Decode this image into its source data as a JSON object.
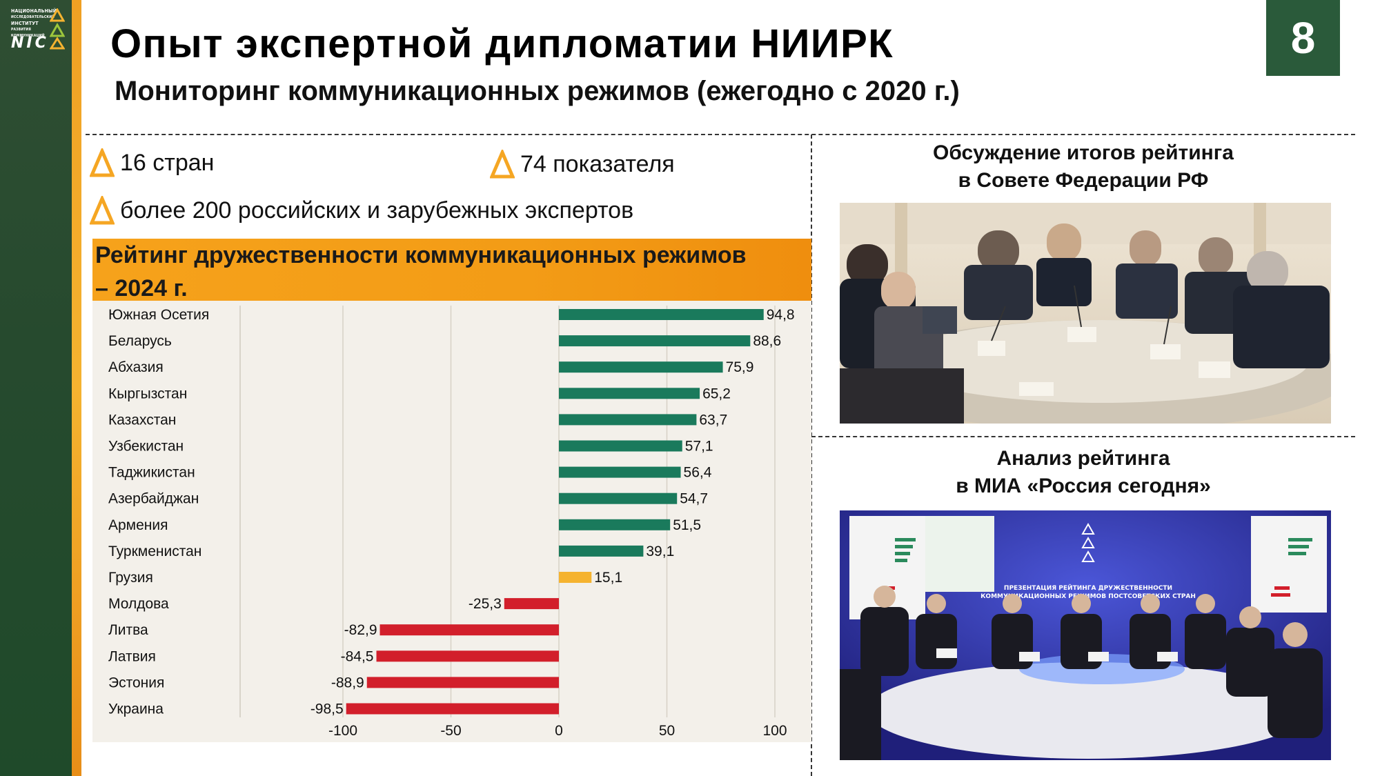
{
  "header": {
    "title": "Опыт экспертной дипломатии НИИРК",
    "subtitle": "Мониторинг коммуникационных режимов (ежегодно с 2020 г.)",
    "page_number": "8"
  },
  "logo": {
    "lines": [
      "НАЦИОНАЛЬНЫЙ",
      "ИССЛЕДОВАТЕЛЬСКИЙ",
      "ИНСТИТУТ",
      "РАЗВИТИЯ",
      "КОММУНИКАЦИЙ"
    ],
    "mark": "NIC"
  },
  "stats": {
    "countries": "16 стран",
    "indicators": "74 показателя",
    "experts": "более 200 российских и зарубежных экспертов"
  },
  "chart_banner": {
    "line1": "Рейтинг дружественности коммуникационных режимов",
    "line2": "– 2024 г."
  },
  "chart_data": {
    "type": "bar",
    "orientation": "horizontal",
    "categories": [
      "Южная Осетия",
      "Беларусь",
      "Абхазия",
      "Кыргызстан",
      "Казахстан",
      "Узбекистан",
      "Таджикистан",
      "Азербайджан",
      "Армения",
      "Туркменистан",
      "Грузия",
      "Молдова",
      "Литва",
      "Латвия",
      "Эстония",
      "Украина"
    ],
    "values": [
      94.8,
      88.6,
      75.9,
      65.2,
      63.7,
      57.1,
      56.4,
      54.7,
      51.5,
      39.1,
      15.1,
      -25.3,
      -82.9,
      -84.5,
      -88.9,
      -98.5
    ],
    "value_labels": [
      "94,8",
      "88,6",
      "75,9",
      "65,2",
      "63,7",
      "57,1",
      "56,4",
      "54,7",
      "51,5",
      "39,1",
      "15,1",
      "-25,3",
      "-82,9",
      "-84,5",
      "-88,9",
      "-98,5"
    ],
    "xlim": [
      -100,
      100
    ],
    "xticks": [
      -100,
      -50,
      0,
      50,
      100
    ],
    "xtick_labels": [
      "-100",
      "-50",
      "0",
      "50",
      "100"
    ],
    "grid": true,
    "colors": {
      "positive": "#1a7a5c",
      "neutral": "#f5b330",
      "negative": "#d21f2b"
    }
  },
  "photos": {
    "top_caption_line1": "Обсуждение итогов рейтинга",
    "top_caption_line2": "в Совете Федерации РФ",
    "bottom_caption_line1": "Анализ рейтинга",
    "bottom_caption_line2": "в МИА «Россия сегодня»",
    "screen_text_line1": "ПРЕЗЕНТАЦИЯ РЕЙТИНГА ДРУЖЕСТВЕННОСТИ",
    "screen_text_line2": "КОММУНИКАЦИОННЫХ РЕЖИМОВ ПОСТСОВЕТСКИХ СТРАН"
  }
}
